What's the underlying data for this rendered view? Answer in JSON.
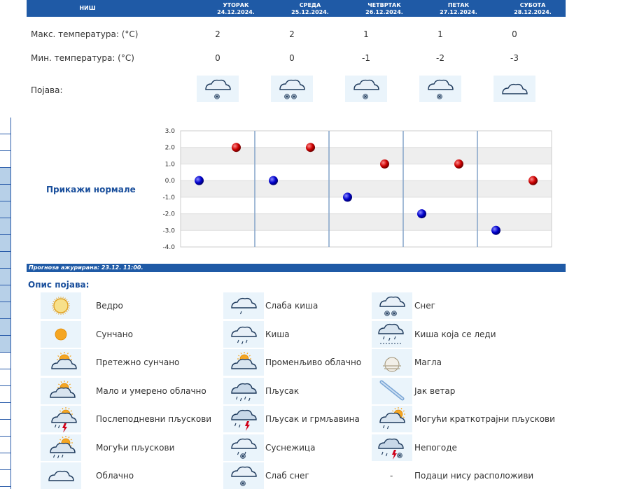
{
  "header": {
    "city": "НИШ",
    "days": [
      {
        "name": "УТОРАК",
        "date": "24.12.2024."
      },
      {
        "name": "СРЕДА",
        "date": "25.12.2024."
      },
      {
        "name": "ЧЕТВРТАК",
        "date": "26.12.2024."
      },
      {
        "name": "ПЕТАК",
        "date": "27.12.2024."
      },
      {
        "name": "СУБОТА",
        "date": "28.12.2024."
      }
    ]
  },
  "rows": {
    "max_label": "Макс. температура: (°C)",
    "min_label": "Мин. температура: (°C)",
    "phenomenon_label": "Појава:",
    "max": [
      "2",
      "2",
      "1",
      "1",
      "0"
    ],
    "min": [
      "0",
      "0",
      "-1",
      "-2",
      "-3"
    ],
    "icons": [
      "light-snow-icon",
      "snow-icon",
      "light-snow-icon",
      "light-snow-icon",
      "cloudy-icon"
    ]
  },
  "show_normals": "Прикажи нормале",
  "chart_data": {
    "type": "scatter",
    "title": "",
    "xlabel": "",
    "ylabel": "",
    "ylim": [
      -4.0,
      3.0
    ],
    "yticks": [
      "3.0",
      "2.0",
      "1.0",
      "0.0",
      "-1.0",
      "-2.0",
      "-3.0",
      "-4.0"
    ],
    "categories": [
      "24.12.2024.",
      "25.12.2024.",
      "26.12.2024.",
      "27.12.2024.",
      "28.12.2024."
    ],
    "series": [
      {
        "values": [
          2,
          2,
          1,
          1,
          0
        ],
        "color": "#cc0000"
      },
      {
        "values": [
          0,
          0,
          -1,
          -2,
          -3
        ],
        "color": "#0000cc"
      }
    ],
    "grid": true
  },
  "updated": "Прогноза ажурирана:  23.12. 11:00.",
  "legend_title": "Опис појава:",
  "legend": [
    {
      "icon": "clear-icon",
      "label": "Ведро"
    },
    {
      "icon": "sunny-icon",
      "label": "Сунчано"
    },
    {
      "icon": "mostly-sunny-icon",
      "label": "Претежно сунчано"
    },
    {
      "icon": "partly-cloudy-icon",
      "label": "Мало и умерено облачно"
    },
    {
      "icon": "afternoon-showers-icon",
      "label": "Послеподневни пљускови"
    },
    {
      "icon": "possible-showers-icon",
      "label": "Могући пљускови"
    },
    {
      "icon": "cloudy-icon",
      "label": "Облачно"
    },
    {
      "icon": "light-rain-icon",
      "label": "Слаба киша"
    },
    {
      "icon": "rain-icon",
      "label": "Киша"
    },
    {
      "icon": "variable-cloudy-icon",
      "label": "Променљиво облачно"
    },
    {
      "icon": "shower-icon",
      "label": "Пљусак"
    },
    {
      "icon": "shower-thunder-icon",
      "label": "Пљусак и грмљавина"
    },
    {
      "icon": "sleet-icon",
      "label": "Суснежица"
    },
    {
      "icon": "light-snow-icon",
      "label": "Слаб снег"
    },
    {
      "icon": "snow-icon",
      "label": "Снег"
    },
    {
      "icon": "freezing-rain-icon",
      "label": "Киша која се леди"
    },
    {
      "icon": "fog-icon",
      "label": "Магла"
    },
    {
      "icon": "strong-wind-icon",
      "label": "Јак ветар"
    },
    {
      "icon": "brief-showers-icon",
      "label": "Могући краткотрајни пљускови"
    },
    {
      "icon": "storm-icon",
      "label": "Непогоде"
    },
    {
      "icon": "no-data-icon",
      "label": "Подаци нису расположиви",
      "symbol": "-"
    }
  ],
  "colors": {
    "header": "#1f5aa6",
    "title": "#1a4f9c",
    "max": "#cc0000",
    "min": "#0000cc"
  }
}
